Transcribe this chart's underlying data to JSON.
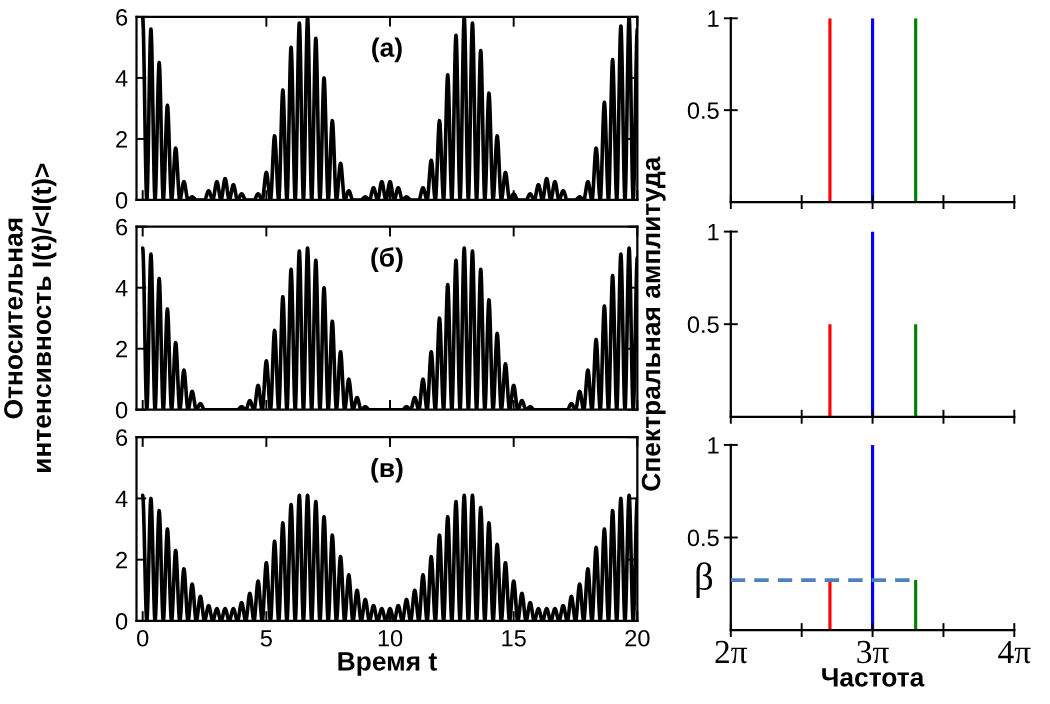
{
  "chart_data": [
    {
      "type": "line",
      "x": [
        0,
        0.167,
        0.333,
        0.5,
        0.667,
        0.833,
        1,
        1.167,
        1.333,
        1.5,
        1.667,
        1.833,
        2,
        2.167,
        2.333,
        2.5,
        2.667,
        2.833,
        3,
        3.167,
        3.333,
        3.5,
        3.667,
        3.833,
        4,
        4.167,
        4.333,
        4.5,
        4.667,
        4.833,
        5,
        5.167,
        5.333,
        5.5,
        5.667,
        5.833,
        6,
        6.167,
        6.333,
        6.5,
        6.667,
        6.833,
        7,
        7.167,
        7.333,
        7.5,
        7.667,
        7.833,
        8,
        8.167,
        8.333,
        8.5,
        8.667,
        8.833,
        9,
        9.167,
        9.333,
        9.5,
        9.667,
        9.833,
        10,
        10.167,
        10.333,
        10.5,
        10.667,
        10.833,
        11,
        11.167,
        11.333,
        11.5,
        11.667,
        11.833,
        12,
        12.167,
        12.333,
        12.5,
        12.667,
        12.833,
        13,
        13.167,
        13.333,
        13.5,
        13.667,
        13.833,
        14,
        14.167,
        14.333,
        14.5,
        14.667,
        14.833,
        15,
        15.167,
        15.333,
        15.5,
        15.667,
        15.833,
        16,
        16.167,
        16.333,
        16.5,
        16.667,
        16.833,
        17,
        17.167,
        17.333,
        17.5,
        17.667,
        17.833,
        18,
        18.167,
        18.333,
        18.5,
        18.667,
        18.833,
        19,
        19.167,
        19.333,
        19.5,
        19.667,
        19.833,
        20
      ],
      "series": [
        {
          "color": "#000000",
          "values": [
            6.0,
            0,
            5.6,
            0,
            4.5,
            0,
            3.1,
            0,
            1.7,
            0,
            0.6,
            0,
            0.1,
            0,
            0.0,
            0,
            0.3,
            0,
            0.6,
            0,
            0.7,
            0,
            0.5,
            0,
            0.2,
            0,
            0.0,
            0,
            0.2,
            0,
            0.9,
            0,
            2.1,
            0,
            3.6,
            0,
            5.0,
            0,
            5.8,
            0,
            6.0,
            0,
            5.3,
            0,
            4.0,
            0,
            2.6,
            0,
            1.2,
            0,
            0.3,
            0,
            0.0,
            0,
            0.1,
            0,
            0.4,
            0,
            0.6,
            0,
            0.6,
            0,
            0.4,
            0,
            0.1,
            0,
            0.0,
            0,
            0.4,
            0,
            1.3,
            0,
            2.6,
            0,
            4.1,
            0,
            5.4,
            0,
            6.0,
            0,
            5.8,
            0,
            4.9,
            0,
            3.5,
            0,
            2.1,
            0,
            0.9,
            0,
            0.2,
            0,
            0.0,
            0,
            0.2,
            0,
            0.5,
            0,
            0.7,
            0,
            0.6,
            0,
            0.3,
            0,
            0.0,
            0,
            0.1,
            0,
            0.6,
            0,
            1.7,
            0,
            3.2,
            0,
            4.6,
            0,
            5.7,
            0,
            6.0,
            0,
            5.6
          ]
        }
      ],
      "xlim": [
        -0.25,
        20
      ],
      "xticks": [
        0,
        5,
        10,
        15,
        20
      ],
      "ylim": [
        0,
        6
      ],
      "yticks": [
        0,
        2,
        4,
        6
      ],
      "tick_labels": "y",
      "annotations": [
        "(а)"
      ]
    },
    {
      "type": "bar",
      "x": [
        8.48,
        9.425,
        10.38
      ],
      "values": [
        1,
        1,
        1
      ],
      "colors": [
        "#ff0000",
        "#0000ff",
        "#008000"
      ],
      "xlim": [
        6.283,
        12.566
      ],
      "xticks": [
        {
          "value": 6.283,
          "label": null
        },
        {
          "value": 7.854,
          "label": null
        },
        {
          "value": 9.425,
          "label": null
        },
        {
          "value": 10.996,
          "label": null
        },
        {
          "value": 12.566,
          "label": null
        }
      ],
      "ylim": [
        0,
        1
      ],
      "yticks": [
        0.5,
        1
      ],
      "tick_labels": "y"
    },
    {
      "type": "line",
      "x": [
        0,
        0.167,
        0.333,
        0.5,
        0.667,
        0.833,
        1,
        1.167,
        1.333,
        1.5,
        1.667,
        1.833,
        2,
        2.167,
        2.333,
        2.5,
        2.667,
        2.833,
        3,
        3.167,
        3.333,
        3.5,
        3.667,
        3.833,
        4,
        4.167,
        4.333,
        4.5,
        4.667,
        4.833,
        5,
        5.167,
        5.333,
        5.5,
        5.667,
        5.833,
        6,
        6.167,
        6.333,
        6.5,
        6.667,
        6.833,
        7,
        7.167,
        7.333,
        7.5,
        7.667,
        7.833,
        8,
        8.167,
        8.333,
        8.5,
        8.667,
        8.833,
        9,
        9.167,
        9.333,
        9.5,
        9.667,
        9.833,
        10,
        10.167,
        10.333,
        10.5,
        10.667,
        10.833,
        11,
        11.167,
        11.333,
        11.5,
        11.667,
        11.833,
        12,
        12.167,
        12.333,
        12.5,
        12.667,
        12.833,
        13,
        13.167,
        13.333,
        13.5,
        13.667,
        13.833,
        14,
        14.167,
        14.333,
        14.5,
        14.667,
        14.833,
        15,
        15.167,
        15.333,
        15.5,
        15.667,
        15.833,
        16,
        16.167,
        16.333,
        16.5,
        16.667,
        16.833,
        17,
        17.167,
        17.333,
        17.5,
        17.667,
        17.833,
        18,
        18.167,
        18.333,
        18.5,
        18.667,
        18.833,
        19,
        19.167,
        19.333,
        19.5,
        19.667,
        19.833,
        20
      ],
      "series": [
        {
          "color": "#000000",
          "values": [
            5.3,
            0,
            5.1,
            0,
            4.3,
            0,
            3.3,
            0,
            2.2,
            0,
            1.3,
            0,
            0.6,
            0,
            0.2,
            0,
            0.0,
            0,
            0.0,
            0,
            0.0,
            0,
            0.0,
            0,
            0.1,
            0,
            0.3,
            0,
            0.8,
            0,
            1.6,
            0,
            2.6,
            0,
            3.7,
            0,
            4.6,
            0,
            5.2,
            0,
            5.3,
            0,
            4.9,
            0,
            4.0,
            0,
            2.9,
            0,
            1.9,
            0,
            1.0,
            0,
            0.4,
            0,
            0.1,
            0,
            0.0,
            0,
            0.0,
            0,
            0.0,
            0,
            0.0,
            0,
            0.1,
            0,
            0.4,
            0,
            1.0,
            0,
            1.9,
            0,
            3.0,
            0,
            4.1,
            0,
            4.9,
            0,
            5.3,
            0,
            5.2,
            0,
            4.6,
            0,
            3.6,
            0,
            2.5,
            0,
            1.5,
            0,
            0.8,
            0,
            0.3,
            0,
            0.1,
            0,
            0.0,
            0,
            0.0,
            0,
            0.0,
            0,
            0.0,
            0,
            0.2,
            0,
            0.6,
            0,
            1.3,
            0,
            2.3,
            0,
            3.4,
            0,
            4.4,
            0,
            5.1,
            0,
            5.3,
            0,
            5.0
          ]
        }
      ],
      "xlim": [
        -0.25,
        20
      ],
      "xticks": [
        0,
        5,
        10,
        15,
        20
      ],
      "ylim": [
        0,
        6
      ],
      "yticks": [
        0,
        2,
        4,
        6
      ],
      "tick_labels": "y",
      "ylabel": "Относительная\nинтенсивность I(t)/<I(t)>",
      "annotations": [
        "(б)"
      ]
    },
    {
      "type": "bar",
      "x": [
        8.48,
        9.425,
        10.38
      ],
      "values": [
        0.5,
        1,
        0.5
      ],
      "colors": [
        "#ff0000",
        "#0000ff",
        "#008000"
      ],
      "xlim": [
        6.283,
        12.566
      ],
      "xticks": [
        {
          "value": 6.283,
          "label": null
        },
        {
          "value": 7.854,
          "label": null
        },
        {
          "value": 9.425,
          "label": null
        },
        {
          "value": 10.996,
          "label": null
        },
        {
          "value": 12.566,
          "label": null
        }
      ],
      "ylim": [
        0,
        1
      ],
      "yticks": [
        0.5,
        1
      ],
      "tick_labels": "y",
      "ylabel": "Спектральная амплитуда"
    },
    {
      "type": "line",
      "x": [
        0,
        0.167,
        0.333,
        0.5,
        0.667,
        0.833,
        1,
        1.167,
        1.333,
        1.5,
        1.667,
        1.833,
        2,
        2.167,
        2.333,
        2.5,
        2.667,
        2.833,
        3,
        3.167,
        3.333,
        3.5,
        3.667,
        3.833,
        4,
        4.167,
        4.333,
        4.5,
        4.667,
        4.833,
        5,
        5.167,
        5.333,
        5.5,
        5.667,
        5.833,
        6,
        6.167,
        6.333,
        6.5,
        6.667,
        6.833,
        7,
        7.167,
        7.333,
        7.5,
        7.667,
        7.833,
        8,
        8.167,
        8.333,
        8.5,
        8.667,
        8.833,
        9,
        9.167,
        9.333,
        9.5,
        9.667,
        9.833,
        10,
        10.167,
        10.333,
        10.5,
        10.667,
        10.833,
        11,
        11.167,
        11.333,
        11.5,
        11.667,
        11.833,
        12,
        12.167,
        12.333,
        12.5,
        12.667,
        12.833,
        13,
        13.167,
        13.333,
        13.5,
        13.667,
        13.833,
        14,
        14.167,
        14.333,
        14.5,
        14.667,
        14.833,
        15,
        15.167,
        15.333,
        15.5,
        15.667,
        15.833,
        16,
        16.167,
        16.333,
        16.5,
        16.667,
        16.833,
        17,
        17.167,
        17.333,
        17.5,
        17.667,
        17.833,
        18,
        18.167,
        18.333,
        18.5,
        18.667,
        18.833,
        19,
        19.167,
        19.333,
        19.5,
        19.667,
        19.833,
        20
      ],
      "series": [
        {
          "color": "#000000",
          "values": [
            4.1,
            0,
            4.0,
            0,
            3.6,
            0,
            3.0,
            0,
            2.3,
            0,
            1.7,
            0,
            1.2,
            0,
            0.8,
            0,
            0.5,
            0,
            0.4,
            0,
            0.4,
            0,
            0.4,
            0,
            0.6,
            0,
            0.9,
            0,
            1.3,
            0,
            1.9,
            0,
            2.6,
            0,
            3.2,
            0,
            3.8,
            0,
            4.1,
            0,
            4.1,
            0,
            3.9,
            0,
            3.4,
            0,
            2.8,
            0,
            2.1,
            0,
            1.5,
            0,
            1.0,
            0,
            0.7,
            0,
            0.5,
            0,
            0.4,
            0,
            0.4,
            0,
            0.5,
            0,
            0.7,
            0,
            1.0,
            0,
            1.5,
            0,
            2.1,
            0,
            2.8,
            0,
            3.4,
            0,
            3.9,
            0,
            4.1,
            0,
            4.1,
            0,
            3.7,
            0,
            3.2,
            0,
            2.5,
            0,
            1.9,
            0,
            1.3,
            0,
            0.9,
            0,
            0.6,
            0,
            0.4,
            0,
            0.4,
            0,
            0.4,
            0,
            0.5,
            0,
            0.8,
            0,
            1.2,
            0,
            1.7,
            0,
            2.4,
            0,
            3.0,
            0,
            3.6,
            0,
            4.0,
            0,
            4.1,
            0,
            4.0
          ]
        }
      ],
      "xlim": [
        -0.25,
        20
      ],
      "xticks": [
        0,
        5,
        10,
        15,
        20
      ],
      "ylim": [
        0,
        6
      ],
      "yticks": [
        0,
        2,
        4,
        6
      ],
      "xlabel": "Время t",
      "annotations": [
        "(в)"
      ]
    },
    {
      "type": "bar",
      "x": [
        8.48,
        9.425,
        10.38
      ],
      "values": [
        0.27,
        1,
        0.27
      ],
      "colors": [
        "#ff0000",
        "#0000ff",
        "#008000"
      ],
      "xlim": [
        6.283,
        12.566
      ],
      "xticks": [
        {
          "value": 6.283,
          "label": "2π"
        },
        {
          "value": 7.854,
          "label": null
        },
        {
          "value": 9.425,
          "label": "3π"
        },
        {
          "value": 10.996,
          "label": null
        },
        {
          "value": 12.566,
          "label": "4π"
        }
      ],
      "ylim": [
        0,
        1
      ],
      "yticks": [
        0.5,
        1
      ],
      "xlabel": "Частота",
      "ref_lines": [
        {
          "axis": "y",
          "value": 0.27,
          "label": "β",
          "color": "#4f81bd",
          "line_style": "dashed"
        }
      ]
    }
  ]
}
